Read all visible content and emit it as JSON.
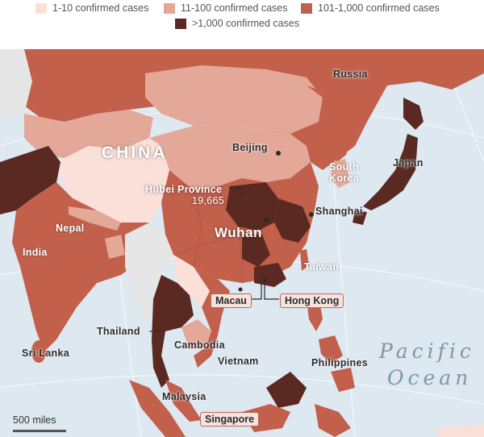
{
  "legend": {
    "items": [
      {
        "label": "1-10 confirmed cases",
        "color": "#fbe0da"
      },
      {
        "label": "11-100 confirmed cases",
        "color": "#e3a898"
      },
      {
        "label": "101-1,000 confirmed cases",
        "color": "#c2604c"
      },
      {
        "label": ">1,000 confirmed cases",
        "color": "#5a2a22"
      }
    ]
  },
  "labels": {
    "russia": "Russia",
    "china": "CHINA",
    "beijing": "Beijing",
    "south_korea_line1": "South",
    "south_korea_line2": "Korea",
    "japan": "Japan",
    "hubei_name": "Hubei Province",
    "hubei_cases": "19,665",
    "shanghai": "Shanghai",
    "nepal": "Nepal",
    "wuhan": "Wuhan",
    "india": "India",
    "taiwan": "Taiwan",
    "macau": "Macau",
    "hong_kong": "Hong Kong",
    "thailand": "Thailand",
    "cambodia": "Cambodia",
    "vietnam": "Vietnam",
    "sri_lanka": "Sri Lanka",
    "philippines": "Philippines",
    "malaysia": "Malaysia",
    "singapore": "Singapore",
    "pacific_line1": "Pacific",
    "pacific_line2": "Ocean"
  },
  "scale": {
    "label": "500 miles"
  },
  "colors": {
    "ocean": "#dde8f0",
    "no_data": "#e6e6e6",
    "tier_1_10": "#fbe0da",
    "tier_11_100": "#e3a898",
    "tier_101_1000": "#c2604c",
    "tier_over_1000": "#5a2a22"
  }
}
